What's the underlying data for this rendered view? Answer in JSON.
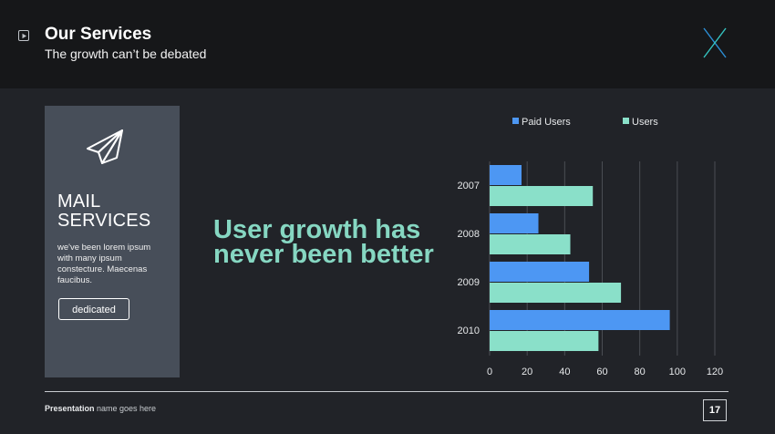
{
  "header": {
    "title": "Our Services",
    "subtitle": "The growth can’t be debated",
    "play_icon": "play-icon",
    "logo_icon": "x-logo-icon"
  },
  "card": {
    "icon": "paper-plane-icon",
    "title_line1": "MAIL",
    "title_line2": "SERVICES",
    "body": "we've been lorem ipsum with many ipsum constecture. Maecenas faucibus.",
    "button_label": "dedicated"
  },
  "headline": "User growth has never been better",
  "footer": {
    "label_bold": "Presentation",
    "label_rest": " name goes here",
    "page_number": "17"
  },
  "colors": {
    "paid": "#4d97f3",
    "users": "#8ae0c9",
    "accent_text": "#86d7c2",
    "grid": "#4a4d53"
  },
  "chart_data": {
    "type": "bar",
    "orientation": "horizontal",
    "categories": [
      "2007",
      "2008",
      "2009",
      "2010"
    ],
    "series": [
      {
        "name": "Paid Users",
        "values": [
          17,
          26,
          53,
          96
        ]
      },
      {
        "name": "Users",
        "values": [
          55,
          43,
          70,
          58
        ]
      }
    ],
    "xticks": [
      "0",
      "20",
      "40",
      "60",
      "80",
      "100",
      "120"
    ],
    "xlim": [
      0,
      120
    ],
    "grid": true,
    "legend": "top"
  }
}
